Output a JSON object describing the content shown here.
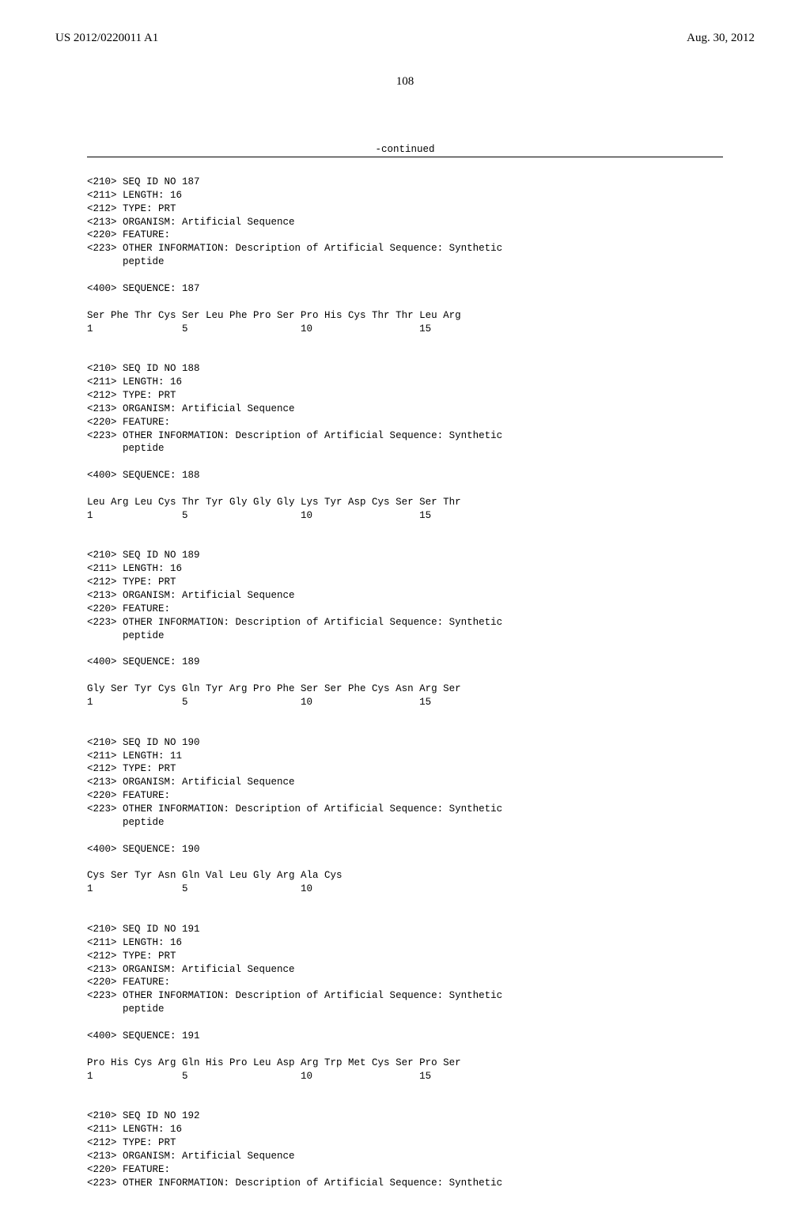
{
  "header": {
    "pub_number": "US 2012/0220011 A1",
    "pub_date": "Aug. 30, 2012"
  },
  "page_number": "108",
  "continued_label": "-continued",
  "sequences": [
    {
      "seq_id": "<210> SEQ ID NO 187",
      "length": "<211> LENGTH: 16",
      "type": "<212> TYPE: PRT",
      "organism": "<213> ORGANISM: Artificial Sequence",
      "feature": "<220> FEATURE:",
      "other_info": "<223> OTHER INFORMATION: Description of Artificial Sequence: Synthetic",
      "other_info_cont": "      peptide",
      "seq_header": "<400> SEQUENCE: 187",
      "residues": "Ser Phe Thr Cys Ser Leu Phe Pro Ser Pro His Cys Thr Thr Leu Arg",
      "positions": "1               5                   10                  15"
    },
    {
      "seq_id": "<210> SEQ ID NO 188",
      "length": "<211> LENGTH: 16",
      "type": "<212> TYPE: PRT",
      "organism": "<213> ORGANISM: Artificial Sequence",
      "feature": "<220> FEATURE:",
      "other_info": "<223> OTHER INFORMATION: Description of Artificial Sequence: Synthetic",
      "other_info_cont": "      peptide",
      "seq_header": "<400> SEQUENCE: 188",
      "residues": "Leu Arg Leu Cys Thr Tyr Gly Gly Gly Lys Tyr Asp Cys Ser Ser Thr",
      "positions": "1               5                   10                  15"
    },
    {
      "seq_id": "<210> SEQ ID NO 189",
      "length": "<211> LENGTH: 16",
      "type": "<212> TYPE: PRT",
      "organism": "<213> ORGANISM: Artificial Sequence",
      "feature": "<220> FEATURE:",
      "other_info": "<223> OTHER INFORMATION: Description of Artificial Sequence: Synthetic",
      "other_info_cont": "      peptide",
      "seq_header": "<400> SEQUENCE: 189",
      "residues": "Gly Ser Tyr Cys Gln Tyr Arg Pro Phe Ser Ser Phe Cys Asn Arg Ser",
      "positions": "1               5                   10                  15"
    },
    {
      "seq_id": "<210> SEQ ID NO 190",
      "length": "<211> LENGTH: 11",
      "type": "<212> TYPE: PRT",
      "organism": "<213> ORGANISM: Artificial Sequence",
      "feature": "<220> FEATURE:",
      "other_info": "<223> OTHER INFORMATION: Description of Artificial Sequence: Synthetic",
      "other_info_cont": "      peptide",
      "seq_header": "<400> SEQUENCE: 190",
      "residues": "Cys Ser Tyr Asn Gln Val Leu Gly Arg Ala Cys",
      "positions": "1               5                   10"
    },
    {
      "seq_id": "<210> SEQ ID NO 191",
      "length": "<211> LENGTH: 16",
      "type": "<212> TYPE: PRT",
      "organism": "<213> ORGANISM: Artificial Sequence",
      "feature": "<220> FEATURE:",
      "other_info": "<223> OTHER INFORMATION: Description of Artificial Sequence: Synthetic",
      "other_info_cont": "      peptide",
      "seq_header": "<400> SEQUENCE: 191",
      "residues": "Pro His Cys Arg Gln His Pro Leu Asp Arg Trp Met Cys Ser Pro Ser",
      "positions": "1               5                   10                  15"
    },
    {
      "seq_id": "<210> SEQ ID NO 192",
      "length": "<211> LENGTH: 16",
      "type": "<212> TYPE: PRT",
      "organism": "<213> ORGANISM: Artificial Sequence",
      "feature": "<220> FEATURE:",
      "other_info": "<223> OTHER INFORMATION: Description of Artificial Sequence: Synthetic",
      "other_info_cont": "",
      "seq_header": "",
      "residues": "",
      "positions": ""
    }
  ]
}
